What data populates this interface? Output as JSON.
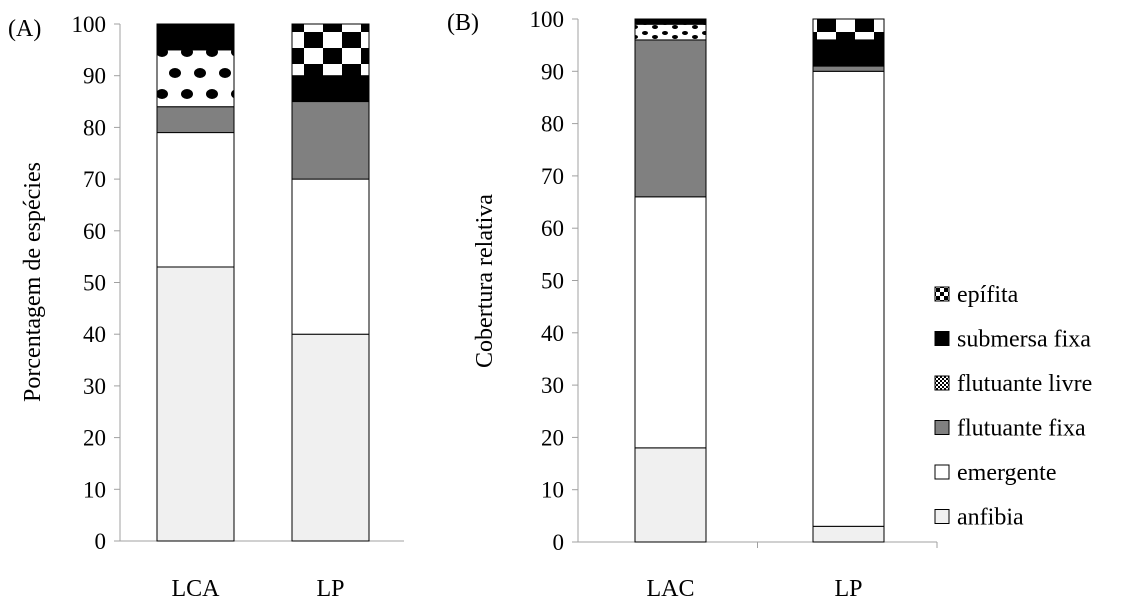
{
  "chart_data": [
    {
      "type": "bar",
      "stacked": true,
      "panel_label": "(A)",
      "ylabel": "Porcentagem de espécies",
      "categories": [
        "LCA",
        "LP"
      ],
      "ylim": [
        0,
        100
      ],
      "yticks": [
        0,
        10,
        20,
        30,
        40,
        50,
        60,
        70,
        80,
        90,
        100
      ],
      "series": [
        {
          "name": "anfibia",
          "values": [
            53,
            40
          ]
        },
        {
          "name": "emergente",
          "values": [
            26,
            30
          ]
        },
        {
          "name": "flutuante fixa",
          "values": [
            5,
            15
          ]
        },
        {
          "name": "flutuante livre",
          "values": [
            11,
            0
          ]
        },
        {
          "name": "submersa fixa",
          "values": [
            5,
            5
          ]
        },
        {
          "name": "epífita",
          "values": [
            0,
            10
          ]
        }
      ],
      "grid": false
    },
    {
      "type": "bar",
      "stacked": true,
      "panel_label": "(B)",
      "ylabel": "Cobertura relativa",
      "categories": [
        "LAC",
        "LP"
      ],
      "ylim": [
        0,
        100
      ],
      "yticks": [
        0,
        10,
        20,
        30,
        40,
        50,
        60,
        70,
        80,
        90,
        100
      ],
      "series": [
        {
          "name": "anfibia",
          "values": [
            18,
            3
          ]
        },
        {
          "name": "emergente",
          "values": [
            48,
            87
          ]
        },
        {
          "name": "flutuante fixa",
          "values": [
            30,
            1
          ]
        },
        {
          "name": "flutuante livre",
          "values": [
            3,
            0
          ]
        },
        {
          "name": "submersa fixa",
          "values": [
            1,
            5
          ]
        },
        {
          "name": "epífita",
          "values": [
            0,
            4
          ]
        }
      ],
      "grid": false
    }
  ],
  "legend": {
    "placement": "right",
    "entries": [
      {
        "label": "epífita",
        "pattern": "checker"
      },
      {
        "label": "submersa fixa",
        "pattern": "solid-black"
      },
      {
        "label": "flutuante livre",
        "pattern": "dots"
      },
      {
        "label": "flutuante fixa",
        "pattern": "solid-gray"
      },
      {
        "label": "emergente",
        "pattern": "white"
      },
      {
        "label": "anfibia",
        "pattern": "light-gray"
      }
    ]
  },
  "colors": {
    "anfibia": "#f0f0f0",
    "emergente": "#ffffff",
    "flutuante fixa": "#808080",
    "submersa fixa": "#000000",
    "axis": "#a0a0a0"
  }
}
